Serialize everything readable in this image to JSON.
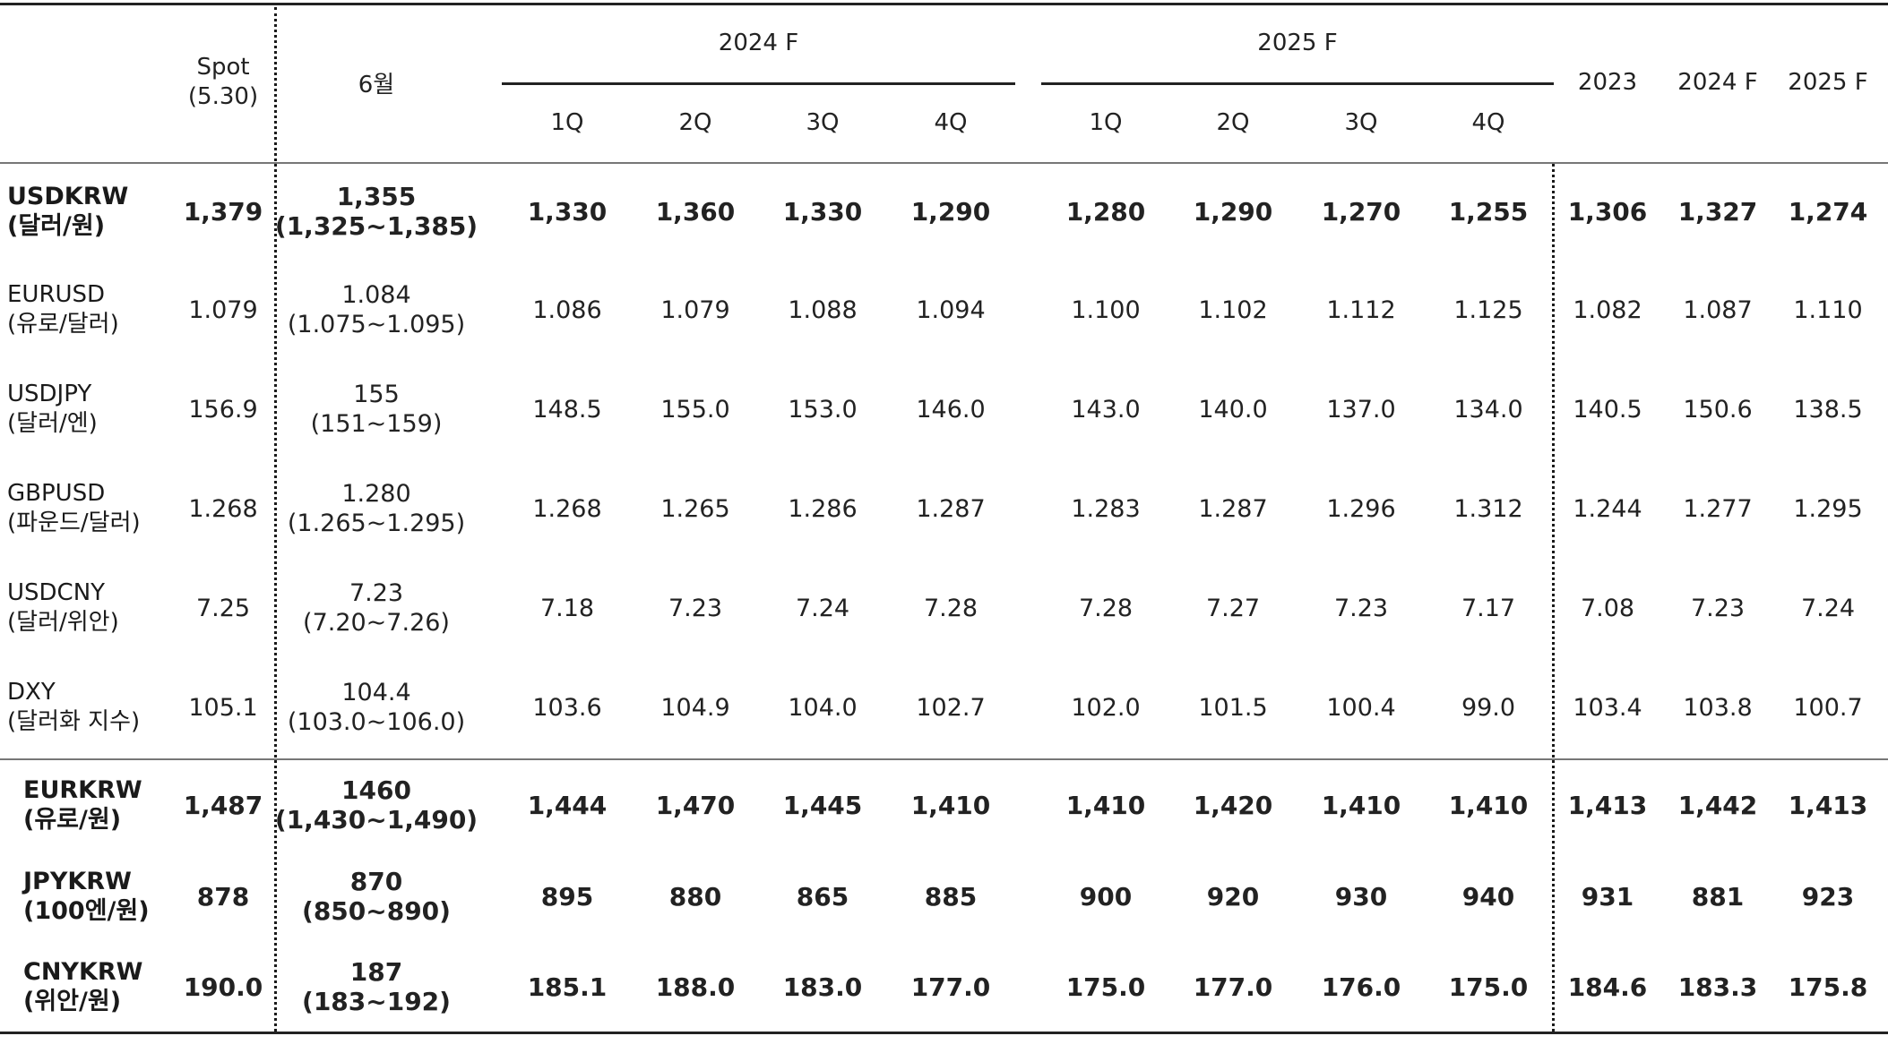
{
  "header": {
    "spot_line1": "Spot",
    "spot_line2": "(5.30)",
    "june": "6월",
    "group_2024": "2024 F",
    "group_2025": "2025 F",
    "quarters": [
      "1Q",
      "2Q",
      "3Q",
      "4Q",
      "1Q",
      "2Q",
      "3Q",
      "4Q"
    ],
    "annual": [
      "2023",
      "2024 F",
      "2025 F"
    ]
  },
  "rows": [
    {
      "code": "USDKRW",
      "desc": "(달러/원)",
      "bold": true,
      "spot": "1,379",
      "june": "1,355",
      "june_range": "(1,325~1,385)",
      "q": [
        "1,330",
        "1,360",
        "1,330",
        "1,290",
        "1,280",
        "1,290",
        "1,270",
        "1,255"
      ],
      "annual": [
        "1,306",
        "1,327",
        "1,274"
      ]
    },
    {
      "code": "EURUSD",
      "desc": "(유로/달러)",
      "bold": false,
      "spot": "1.079",
      "june": "1.084",
      "june_range": "(1.075~1.095)",
      "q": [
        "1.086",
        "1.079",
        "1.088",
        "1.094",
        "1.100",
        "1.102",
        "1.112",
        "1.125"
      ],
      "annual": [
        "1.082",
        "1.087",
        "1.110"
      ]
    },
    {
      "code": "USDJPY",
      "desc": "(달러/엔)",
      "bold": false,
      "spot": "156.9",
      "june": "155",
      "june_range": "(151~159)",
      "q": [
        "148.5",
        "155.0",
        "153.0",
        "146.0",
        "143.0",
        "140.0",
        "137.0",
        "134.0"
      ],
      "annual": [
        "140.5",
        "150.6",
        "138.5"
      ]
    },
    {
      "code": "GBPUSD",
      "desc": "(파운드/달러)",
      "bold": false,
      "spot": "1.268",
      "june": "1.280",
      "june_range": "(1.265~1.295)",
      "q": [
        "1.268",
        "1.265",
        "1.286",
        "1.287",
        "1.283",
        "1.287",
        "1.296",
        "1.312"
      ],
      "annual": [
        "1.244",
        "1.277",
        "1.295"
      ]
    },
    {
      "code": "USDCNY",
      "desc": "(달러/위안)",
      "bold": false,
      "spot": "7.25",
      "june": "7.23",
      "june_range": "(7.20~7.26)",
      "q": [
        "7.18",
        "7.23",
        "7.24",
        "7.28",
        "7.28",
        "7.27",
        "7.23",
        "7.17"
      ],
      "annual": [
        "7.08",
        "7.23",
        "7.24"
      ]
    },
    {
      "code": "DXY",
      "desc": "(달러화 지수)",
      "bold": false,
      "spot": "105.1",
      "june": "104.4",
      "june_range": "(103.0~106.0)",
      "q": [
        "103.6",
        "104.9",
        "104.0",
        "102.7",
        "102.0",
        "101.5",
        "100.4",
        "99.0"
      ],
      "annual": [
        "103.4",
        "103.8",
        "100.7"
      ]
    },
    {
      "code": "EURKRW",
      "desc": "(유로/원)",
      "bold": true,
      "spot": "1,487",
      "june": "1460",
      "june_range": "(1,430~1,490)",
      "q": [
        "1,444",
        "1,470",
        "1,445",
        "1,410",
        "1,410",
        "1,420",
        "1,410",
        "1,410"
      ],
      "annual": [
        "1,413",
        "1,442",
        "1,413"
      ]
    },
    {
      "code": "JPYKRW",
      "desc": "(100엔/원)",
      "bold": true,
      "spot": "878",
      "june": "870",
      "june_range": "(850~890)",
      "q": [
        "895",
        "880",
        "865",
        "885",
        "900",
        "920",
        "930",
        "940"
      ],
      "annual": [
        "931",
        "881",
        "923"
      ]
    },
    {
      "code": "CNYKRW",
      "desc": "(위안/원)",
      "bold": true,
      "spot": "190.0",
      "june": "187",
      "june_range": "(183~192)",
      "q": [
        "185.1",
        "188.0",
        "183.0",
        "177.0",
        "175.0",
        "177.0",
        "176.0",
        "175.0"
      ],
      "annual": [
        "184.6",
        "183.3",
        "175.8"
      ]
    }
  ]
}
